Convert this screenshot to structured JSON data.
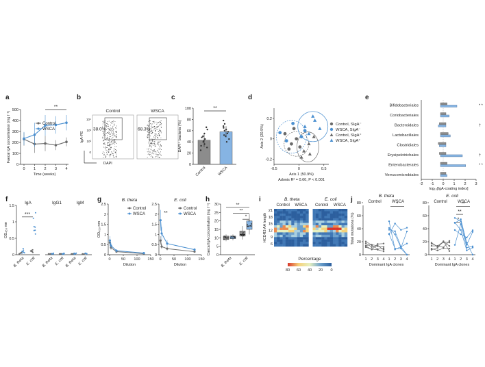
{
  "colors": {
    "control": "#6b6b6b",
    "wsca": "#4a8fd0",
    "wsca_fill": "#86b4e3",
    "control_fill": "#8c8c8c",
    "axis": "#333333"
  },
  "panel_letters": [
    "a",
    "b",
    "c",
    "d",
    "e",
    "f",
    "g",
    "h",
    "i",
    "j"
  ],
  "chart_data": [
    {
      "id": "a",
      "type": "line",
      "ylabel": "Faecal IgA concentration (mg l⁻¹)",
      "xlabel": "Time (weeks)",
      "x": [
        0,
        1,
        2,
        3,
        4
      ],
      "ylim": [
        0,
        500
      ],
      "yticks": [
        0,
        100,
        200,
        300,
        400,
        500
      ],
      "series": [
        {
          "name": "Control",
          "values": [
            230,
            185,
            190,
            175,
            205
          ],
          "err": [
            60,
            80,
            70,
            45,
            40
          ]
        },
        {
          "name": "WSCA",
          "values": [
            235,
            270,
            355,
            360,
            380
          ],
          "err": [
            60,
            110,
            95,
            80,
            70
          ]
        }
      ],
      "annotation": "**"
    },
    {
      "id": "b",
      "type": "scatter",
      "xlabel": "DAPI",
      "ylabel": "IgA-PE",
      "panels": [
        {
          "name": "Control",
          "gate_pct": "38.0%"
        },
        {
          "name": "WSCA",
          "gate_pct": "68.3%"
        }
      ],
      "ticks": [
        "10⁴",
        "10³",
        "10²",
        "0"
      ]
    },
    {
      "id": "c",
      "type": "bar",
      "ylabel": "DAPI⁺ bacteria (%)",
      "categories": [
        "Control",
        "WSCA"
      ],
      "values": [
        43,
        58
      ],
      "err": [
        12,
        10
      ],
      "ylim": [
        0,
        100
      ],
      "yticks": [
        0,
        20,
        40,
        60,
        80,
        100
      ],
      "points": [
        [
          25,
          30,
          33,
          36,
          40,
          42,
          45,
          48,
          50,
          55,
          62,
          66
        ],
        [
          40,
          45,
          50,
          52,
          55,
          58,
          60,
          62,
          65,
          68,
          72,
          78
        ]
      ],
      "annotation": "**"
    },
    {
      "id": "d",
      "type": "scatter",
      "xlabel": "Axis 1 (50.9%)",
      "ylabel": "Axis 2 (20.5%)",
      "xlim": [
        -0.5,
        0.6
      ],
      "ylim": [
        -0.25,
        0.3
      ],
      "xticks": [
        -0.5,
        0,
        0.5
      ],
      "yticks": [
        -0.2,
        0,
        0.2
      ],
      "stats": "Adonis R² = 0.60, P < 0.001",
      "legend": [
        "Control, SIgA⁻",
        "WSCA, SIgA⁻",
        "Control, SIgA⁺",
        "WSCA, SIgA⁺"
      ],
      "groups": [
        {
          "name": "Control, SIgA⁻",
          "marker": "circle",
          "color": "#6b6b6b",
          "points": [
            [
              -0.28,
              0.05
            ],
            [
              -0.15,
              -0.05
            ],
            [
              -0.05,
              0.0
            ],
            [
              -0.2,
              -0.1
            ],
            [
              0.02,
              -0.08
            ],
            [
              -0.1,
              0.1
            ]
          ]
        },
        {
          "name": "WSCA, SIgA⁻",
          "marker": "circle",
          "color": "#4a8fd0",
          "points": [
            [
              -0.38,
              0.06
            ],
            [
              -0.12,
              0.15
            ],
            [
              0.05,
              0.02
            ],
            [
              -0.25,
              -0.02
            ],
            [
              0.12,
              0.08
            ]
          ]
        },
        {
          "name": "Control, SIgA⁺",
          "marker": "triangle",
          "color": "#6b6b6b",
          "points": [
            [
              0.1,
              -0.12
            ],
            [
              0.2,
              -0.05
            ],
            [
              0.3,
              0.02
            ],
            [
              0.05,
              -0.18
            ],
            [
              0.22,
              -0.15
            ]
          ]
        },
        {
          "name": "WSCA, SIgA⁺",
          "marker": "triangle",
          "color": "#4a8fd0",
          "points": [
            [
              0.32,
              0.18
            ],
            [
              0.2,
              0.05
            ],
            [
              0.42,
              0.1
            ],
            [
              0.28,
              0.22
            ],
            [
              0.12,
              0.12
            ]
          ]
        }
      ]
    },
    {
      "id": "e",
      "type": "bar",
      "xlabel": "log₁₀[IgA-coating index]",
      "xlim": [
        -2,
        3
      ],
      "xticks": [
        -2,
        -1,
        0,
        1,
        2,
        3
      ],
      "categories": [
        "Bifidobacteriales",
        "Coriobacteriales",
        "Bacteroidales",
        "Lactobacillales",
        "Clostridiales",
        "Erysipelotrichales",
        "Enterobacterales",
        "Verrucomicrobiales"
      ],
      "series": [
        {
          "name": "Control",
          "values": [
            0.1,
            0.0,
            -0.1,
            0.2,
            -0.2,
            -0.1,
            0.1,
            0.0
          ]
        },
        {
          "name": "WSCA",
          "values": [
            1.0,
            0.3,
            -0.2,
            0.4,
            -0.1,
            1.5,
            1.8,
            0.1
          ]
        }
      ],
      "annotations": [
        "* *",
        "",
        "†",
        "",
        "",
        "†",
        "* *",
        ""
      ]
    },
    {
      "id": "f",
      "type": "scatter",
      "ylabel": "OD₄₅₀ nm",
      "ylim": [
        0,
        1.5
      ],
      "yticks": [
        0,
        0.5,
        1.0,
        1.5
      ],
      "panels": [
        {
          "name": "IgA",
          "categories": [
            "B. theta",
            "E. coli"
          ],
          "control": [
            0.05,
            0.1
          ],
          "wsca": [
            0.12,
            0.8
          ],
          "annotation": "***"
        },
        {
          "name": "IgG1",
          "categories": [
            "B. theta",
            "E. coli"
          ],
          "control": [
            0.02,
            0.02
          ],
          "wsca": [
            0.03,
            0.03
          ],
          "annotation": ""
        },
        {
          "name": "IgM",
          "categories": [
            "B. theta",
            "E. coli"
          ],
          "control": [
            0.02,
            0.02
          ],
          "wsca": [
            0.03,
            0.03
          ],
          "annotation": ""
        }
      ]
    },
    {
      "id": "g",
      "type": "line",
      "ylabel": "OD₄₅₀ nm",
      "xlabel": "Dilution",
      "panels": [
        {
          "title": "B. theta",
          "x": [
            1,
            5,
            25,
            125
          ],
          "ylim": [
            0,
            2.5
          ],
          "yticks": [
            0,
            0.5,
            1.0,
            1.5,
            2.0,
            2.5
          ],
          "series": [
            {
              "name": "Control",
              "values": [
                0.6,
                0.35,
                0.15,
                0.05
              ]
            },
            {
              "name": "WSCA",
              "values": [
                0.7,
                0.45,
                0.2,
                0.08
              ]
            }
          ],
          "annotation": ""
        },
        {
          "title": "E. coli",
          "x": [
            1,
            5,
            25,
            125
          ],
          "ylim": [
            0,
            2.5
          ],
          "yticks": [
            0,
            0.5,
            1.0,
            1.5,
            2.0,
            2.5
          ],
          "series": [
            {
              "name": "Control",
              "values": [
                0.7,
                0.4,
                0.3,
                0.15
              ]
            },
            {
              "name": "WSCA",
              "values": [
                1.7,
                1.05,
                0.55,
                0.25
              ]
            }
          ],
          "annotation": "**"
        }
      ],
      "xticks": [
        0,
        50,
        100,
        150
      ],
      "legend": [
        "Control",
        "WSCA"
      ]
    },
    {
      "id": "h",
      "type": "bar",
      "ylabel": "Caecal IgA concentration (mg l⁻¹)",
      "ylim": [
        0,
        30
      ],
      "yticks": [
        0,
        5,
        10,
        15,
        20,
        25,
        30
      ],
      "categories": [
        "B. theta",
        "E. coli"
      ],
      "boxes": [
        {
          "group": "B. theta",
          "name": "Control",
          "median": 10,
          "q1": 9,
          "q3": 11,
          "min": 8,
          "max": 12
        },
        {
          "group": "B. theta",
          "name": "WSCA",
          "median": 10,
          "q1": 9.5,
          "q3": 11,
          "min": 8.5,
          "max": 12
        },
        {
          "group": "E. coli",
          "name": "Control",
          "median": 12,
          "q1": 11,
          "q3": 14,
          "min": 9,
          "max": 17
        },
        {
          "group": "E. coli",
          "name": "WSCA",
          "median": 17,
          "q1": 15,
          "q3": 20,
          "min": 12,
          "max": 24
        }
      ],
      "annotations": [
        "**",
        "**",
        "*"
      ]
    },
    {
      "id": "i",
      "type": "heatmap",
      "ylabel": "HCDR3 AA length",
      "yticks": [
        21,
        18,
        15,
        12,
        9,
        6
      ],
      "panels": [
        {
          "title": "B. theta",
          "groups": [
            "Control",
            "WSCA"
          ]
        },
        {
          "title": "E. coli",
          "groups": [
            "Control",
            "WSCA"
          ]
        }
      ],
      "legend_title": "Percentage",
      "legend_ticks": [
        80,
        60,
        40,
        20,
        0
      ]
    },
    {
      "id": "j",
      "type": "line",
      "ylabel": "Total mutations (%)",
      "xlabel": "Dominant IgA clones",
      "ylim": [
        0,
        80
      ],
      "yticks": [
        0,
        20,
        40,
        60,
        80
      ],
      "xticks": [
        1,
        2,
        3,
        4
      ],
      "panels": [
        {
          "title": "B. theta",
          "groups": [
            "Control",
            "WSCA"
          ],
          "annotation": "*"
        },
        {
          "title": "E. coli",
          "groups": [
            "Control",
            "WSCA"
          ],
          "annotation": "**"
        }
      ]
    }
  ]
}
